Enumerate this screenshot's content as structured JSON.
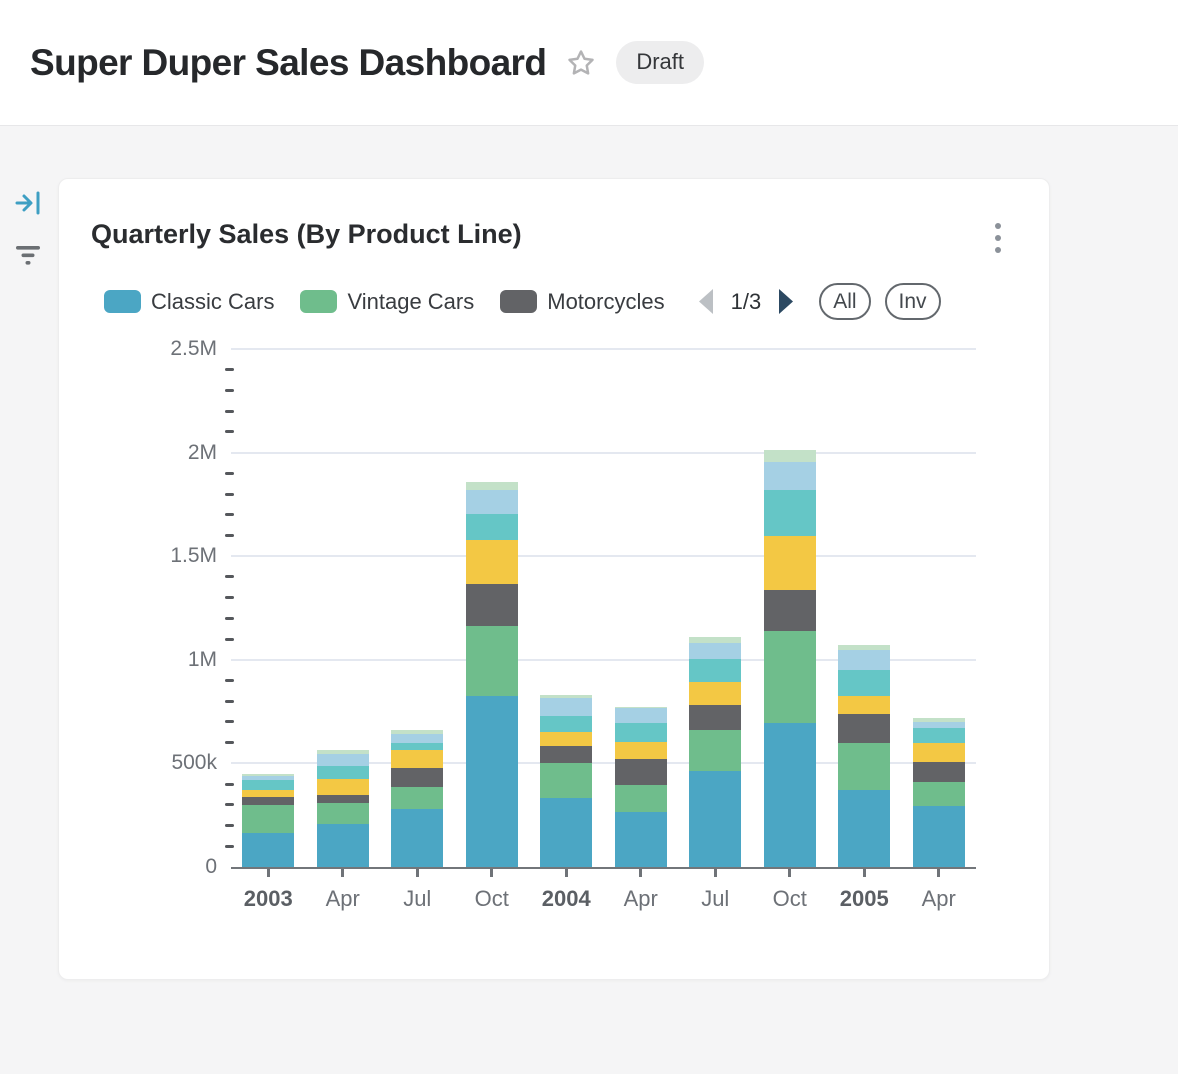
{
  "page": {
    "title": "Super Duper Sales Dashboard",
    "status_badge": "Draft"
  },
  "rail": {
    "icons": [
      "collapse-panel-icon",
      "filter-icon"
    ]
  },
  "widget": {
    "title": "Quarterly Sales (By Product Line)",
    "menu_icon": "kebab-menu",
    "legend_page_indicator": "1/3",
    "select_all_label": "All",
    "invert_label": "Inv"
  },
  "colors": {
    "page_background": "#f5f5f6",
    "card_background": "#ffffff",
    "gridline": "#e4e8f0",
    "axis_line": "#72767a",
    "pager_arrow_disabled": "#bcc0c4",
    "pager_arrow_active": "#2c4962",
    "rail_accent_blue": "#3e9fc3"
  },
  "chart_data": {
    "type": "bar",
    "stacked": true,
    "title": "Quarterly Sales (By Product Line)",
    "values_scale": "thousands (k) as read from y-axis",
    "categories": [
      "2003",
      "Apr",
      "Jul",
      "Oct",
      "2004",
      "Apr",
      "Jul",
      "Oct",
      "2005",
      "Apr"
    ],
    "category_is_year": [
      true,
      false,
      false,
      false,
      true,
      false,
      false,
      false,
      true,
      false
    ],
    "series": [
      {
        "name": "Classic Cars",
        "legend_visible": true,
        "color": "#4BA6C4",
        "values": [
          165,
          207,
          280,
          825,
          333,
          264,
          462,
          697,
          372,
          296
        ]
      },
      {
        "name": "Vintage Cars",
        "legend_visible": true,
        "color": "#6FBD8C",
        "values": [
          133,
          100,
          108,
          337,
          167,
          133,
          198,
          441,
          229,
          113
        ]
      },
      {
        "name": "Motorcycles",
        "legend_visible": true,
        "color": "#626366",
        "values": [
          38,
          42,
          88,
          202,
          85,
          124,
          122,
          200,
          136,
          96
        ]
      },
      {
        "name": "(unlabeled series, legend page 2)",
        "legend_visible": false,
        "color": "#F3C844",
        "values": [
          37,
          75,
          91,
          215,
          69,
          83,
          112,
          260,
          88,
          96
        ]
      },
      {
        "name": "(unlabeled series, legend page 2)",
        "legend_visible": false,
        "color": "#65C6C6",
        "values": [
          48,
          64,
          34,
          123,
          75,
          93,
          112,
          221,
          125,
          72
        ]
      },
      {
        "name": "(unlabeled series, legend page 2)",
        "legend_visible": false,
        "color": "#A5D0E4",
        "values": [
          19,
          60,
          43,
          117,
          85,
          69,
          76,
          136,
          96,
          29
        ]
      },
      {
        "name": "(unlabeled series, legend page 3)",
        "legend_visible": false,
        "color": "#C3E1C8",
        "values": [
          10,
          17,
          16,
          40,
          19,
          8,
          29,
          60,
          28,
          19
        ]
      }
    ],
    "y_axis": {
      "max": 2500,
      "minor_tick_step": 100,
      "ticks": [
        {
          "value": 0,
          "label": "0"
        },
        {
          "value": 500,
          "label": "500k"
        },
        {
          "value": 1000,
          "label": "1M"
        },
        {
          "value": 1500,
          "label": "1.5M"
        },
        {
          "value": 2000,
          "label": "2M"
        },
        {
          "value": 2500,
          "label": "2.5M"
        }
      ]
    },
    "legend": {
      "position": "top",
      "page": "1/3",
      "visible_entries": [
        "Classic Cars",
        "Vintage Cars",
        "Motorcycles"
      ]
    },
    "grid": "horizontal major gridlines on"
  }
}
